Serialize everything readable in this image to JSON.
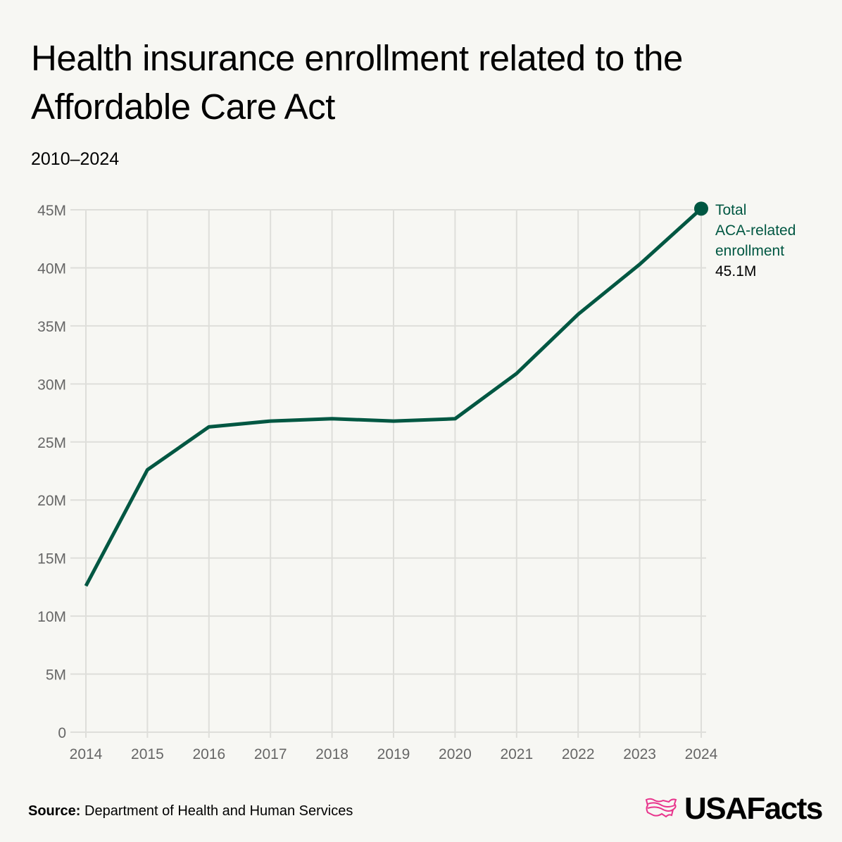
{
  "title": "Health insurance enrollment related to the Affordable Care Act",
  "subtitle": "2010–2024",
  "source_label": "Source:",
  "source_text": "Department of Health and Human Services",
  "logo": "USAFacts",
  "colors": {
    "line": "#005742",
    "grid": "#dededa",
    "axis_text": "#666666",
    "logo_accent": "#e8348c"
  },
  "chart_data": {
    "type": "line",
    "title": "Health insurance enrollment related to the Affordable Care Act",
    "subtitle": "2010–2024",
    "x": [
      2014,
      2015,
      2016,
      2017,
      2018,
      2019,
      2020,
      2021,
      2022,
      2023,
      2024
    ],
    "series": [
      {
        "name": "Total ACA-related enrollment",
        "values": [
          12.6,
          22.6,
          26.3,
          26.8,
          27.0,
          26.8,
          27.0,
          30.9,
          36.0,
          40.3,
          45.1
        ]
      }
    ],
    "end_label": {
      "name_lines": [
        "Total",
        "ACA-related",
        "enrollment"
      ],
      "value": "45.1M"
    },
    "yunit": "M",
    "ylim": [
      0,
      45
    ],
    "yticks": [
      0,
      5,
      10,
      15,
      20,
      25,
      30,
      35,
      40,
      45
    ],
    "ytick_labels": [
      "0",
      "5M",
      "10M",
      "15M",
      "20M",
      "25M",
      "30M",
      "35M",
      "40M",
      "45M"
    ],
    "xtick_labels": [
      "2014",
      "2015",
      "2016",
      "2017",
      "2018",
      "2019",
      "2020",
      "2021",
      "2022",
      "2023",
      "2024"
    ],
    "grid": true,
    "legend": "none"
  }
}
